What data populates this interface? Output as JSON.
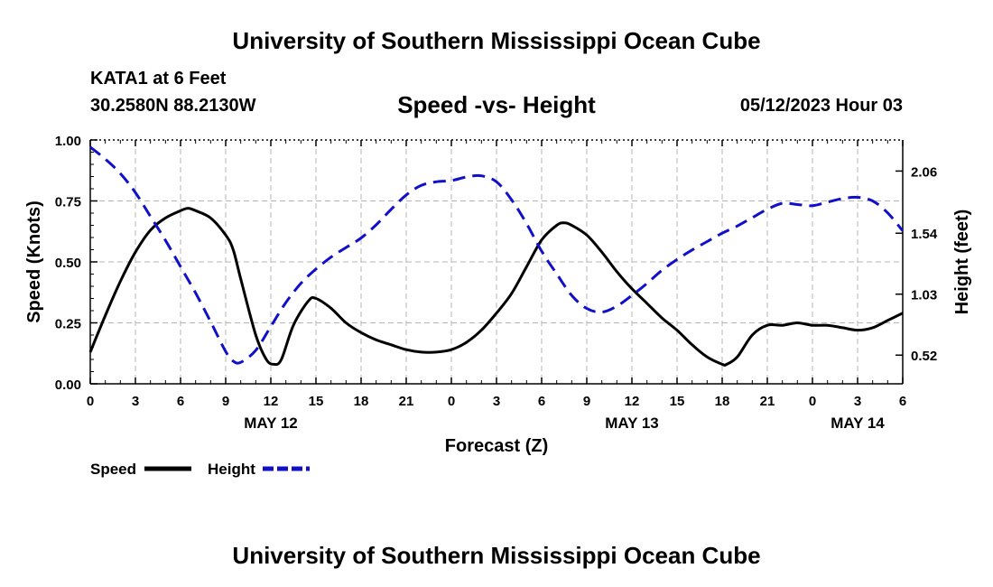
{
  "header": {
    "title": "University of Southern Mississippi Ocean Cube",
    "station": "KATA1 at 6 Feet",
    "coords": "30.2580N  88.2130W",
    "datetime": "05/12/2023 Hour 03"
  },
  "footer": {
    "title": "University of Southern Mississippi Ocean Cube"
  },
  "chart_data": {
    "type": "line",
    "title": "Speed -vs- Height",
    "xlabel": "Forecast (Z)",
    "ylabel": "Speed (Knots)",
    "y2label": "Height (feet)",
    "xlim": [
      0,
      54
    ],
    "ylim": [
      0,
      1
    ],
    "y2lim": [
      0.28,
      2.32
    ],
    "x_ticks": [
      0,
      3,
      6,
      9,
      12,
      15,
      18,
      21,
      24,
      27,
      30,
      33,
      36,
      39,
      42,
      45,
      48,
      51,
      54
    ],
    "x_tick_labels": [
      "0",
      "3",
      "6",
      "9",
      "12",
      "15",
      "18",
      "21",
      "0",
      "3",
      "6",
      "9",
      "12",
      "15",
      "18",
      "21",
      "0",
      "3",
      "6"
    ],
    "date_labels": [
      {
        "x": 12,
        "label": "MAY 12"
      },
      {
        "x": 36,
        "label": "MAY 13"
      },
      {
        "x": 51,
        "label": "MAY 14"
      }
    ],
    "y_ticks": [
      0,
      0.25,
      0.5,
      0.75,
      1.0
    ],
    "y_tick_labels": [
      "0.00",
      "0.25",
      "0.50",
      "0.75",
      "1.00"
    ],
    "y2_ticks": [
      0.52,
      1.03,
      1.54,
      2.06
    ],
    "y2_tick_labels": [
      "0.52",
      "1.03",
      "1.54",
      "2.06"
    ],
    "grid": true,
    "legend": [
      {
        "name": "Speed",
        "color": "#000000",
        "dash": "solid"
      },
      {
        "name": "Height",
        "color": "#1010c8",
        "dash": "dashed"
      }
    ],
    "series": [
      {
        "name": "Speed",
        "axis": "left",
        "color": "#000000",
        "x": [
          0,
          1,
          2,
          3,
          4,
          5,
          6,
          6.5,
          7,
          8,
          9,
          9.5,
          10,
          11,
          11.7,
          12.2,
          12.7,
          13.5,
          14.5,
          15,
          16,
          17,
          18,
          19,
          20,
          21,
          22,
          23,
          24,
          25,
          26,
          27,
          28,
          29,
          30,
          31,
          31.5,
          32,
          33,
          34,
          35,
          36,
          37,
          38,
          39,
          40,
          41,
          42,
          42.3,
          43,
          44,
          45,
          46,
          47,
          48,
          49,
          50,
          51,
          52,
          53,
          54
        ],
        "values": [
          0.13,
          0.28,
          0.42,
          0.54,
          0.63,
          0.68,
          0.71,
          0.72,
          0.71,
          0.68,
          0.61,
          0.55,
          0.43,
          0.2,
          0.1,
          0.08,
          0.1,
          0.24,
          0.34,
          0.35,
          0.31,
          0.25,
          0.21,
          0.18,
          0.16,
          0.14,
          0.13,
          0.13,
          0.14,
          0.17,
          0.22,
          0.29,
          0.37,
          0.48,
          0.59,
          0.65,
          0.66,
          0.65,
          0.61,
          0.54,
          0.46,
          0.39,
          0.33,
          0.27,
          0.22,
          0.16,
          0.11,
          0.08,
          0.08,
          0.11,
          0.2,
          0.24,
          0.24,
          0.25,
          0.24,
          0.24,
          0.23,
          0.22,
          0.23,
          0.26,
          0.29
        ]
      },
      {
        "name": "Height",
        "axis": "right",
        "color": "#1010c8",
        "x": [
          0,
          1,
          2,
          3,
          4,
          5,
          6,
          7,
          8,
          9,
          9.5,
          10,
          11,
          12,
          13,
          14,
          15,
          16,
          17,
          18,
          19,
          20,
          21,
          22,
          23,
          24,
          25,
          26,
          27,
          28,
          29,
          30,
          31,
          32,
          33,
          34,
          35,
          36,
          37,
          38,
          39,
          40,
          41,
          42,
          43,
          44,
          45,
          46,
          47,
          48,
          49,
          50,
          51,
          52,
          53,
          54
        ],
        "values": [
          2.26,
          2.16,
          2.04,
          1.88,
          1.68,
          1.48,
          1.26,
          1.04,
          0.8,
          0.55,
          0.47,
          0.46,
          0.56,
          0.76,
          0.96,
          1.12,
          1.24,
          1.34,
          1.42,
          1.5,
          1.61,
          1.74,
          1.86,
          1.94,
          1.97,
          1.98,
          2.01,
          2.02,
          1.97,
          1.82,
          1.62,
          1.39,
          1.2,
          1.02,
          0.91,
          0.88,
          0.93,
          1.02,
          1.12,
          1.23,
          1.32,
          1.4,
          1.47,
          1.54,
          1.6,
          1.67,
          1.74,
          1.79,
          1.78,
          1.77,
          1.8,
          1.83,
          1.84,
          1.81,
          1.71,
          1.56
        ]
      }
    ]
  }
}
